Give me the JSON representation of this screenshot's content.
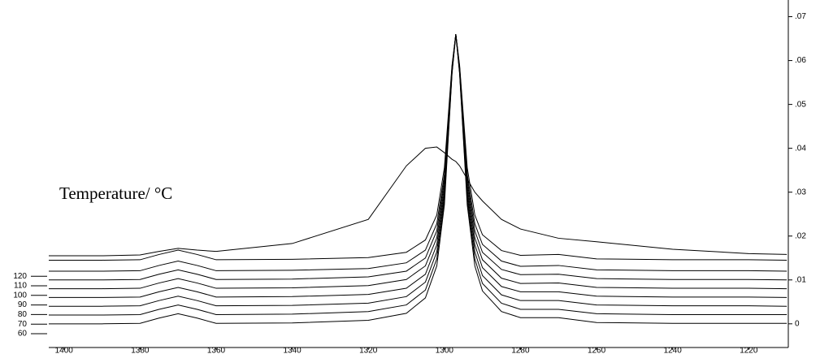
{
  "chart_data": {
    "type": "line",
    "annotation": "Temperature/ °C",
    "x": [
      1404,
      1390,
      1380,
      1375,
      1370,
      1365,
      1360,
      1340,
      1320,
      1310,
      1305,
      1302,
      1300,
      1298,
      1297,
      1296,
      1294,
      1292,
      1290,
      1285,
      1280,
      1270,
      1260,
      1240,
      1220,
      1210
    ],
    "xlim": [
      1404,
      1209.6
    ],
    "xticks": [
      1400,
      1380,
      1360,
      1340,
      1320,
      1300,
      1280,
      1260,
      1240,
      1220
    ],
    "ylim": [
      -0.0054,
      0.0738
    ],
    "yticks": [
      0,
      {
        "value": 0.01,
        "label": ".01"
      },
      {
        "value": 0.02,
        "label": ".02"
      },
      {
        "value": 0.03,
        "label": ".03"
      },
      {
        "value": 0.04,
        "label": ".04"
      },
      {
        "value": 0.05,
        "label": ".05"
      },
      {
        "value": 0.06,
        "label": ".06"
      },
      {
        "value": 0.07,
        "label": ".07"
      }
    ],
    "y2lim": [
      45.6,
      408.3
    ],
    "y2ticks": [
      60,
      70,
      80,
      90,
      100,
      110,
      120
    ],
    "series": [
      {
        "color": "#000000",
        "values": [
          0.0,
          0.0,
          0.0001,
          0.0013,
          0.0023,
          0.0013,
          0.0001,
          0.0002,
          0.0008,
          0.0024,
          0.0059,
          0.0132,
          0.0271,
          0.0569,
          0.066,
          0.0569,
          0.0271,
          0.0132,
          0.0075,
          0.0028,
          0.0014,
          0.0014,
          0.0003,
          0.0001,
          0.0001,
          0.0001
        ]
      },
      {
        "color": "#000000",
        "values": [
          0.002,
          0.002,
          0.0021,
          0.0033,
          0.0043,
          0.0033,
          0.0021,
          0.0022,
          0.0028,
          0.0043,
          0.0077,
          0.0148,
          0.0282,
          0.0572,
          0.066,
          0.0572,
          0.0282,
          0.0148,
          0.0092,
          0.0047,
          0.0033,
          0.0033,
          0.0023,
          0.0021,
          0.0021,
          0.0021
        ]
      },
      {
        "color": "#000000",
        "values": [
          0.004,
          0.004,
          0.0041,
          0.0053,
          0.0063,
          0.0053,
          0.0041,
          0.0042,
          0.0047,
          0.0062,
          0.0095,
          0.0164,
          0.0294,
          0.0574,
          0.066,
          0.0574,
          0.0294,
          0.0164,
          0.011,
          0.0066,
          0.0053,
          0.0053,
          0.0043,
          0.0041,
          0.0041,
          0.004
        ]
      },
      {
        "color": "#000000",
        "values": [
          0.006,
          0.006,
          0.0061,
          0.0073,
          0.0083,
          0.0073,
          0.0061,
          0.0062,
          0.0067,
          0.0081,
          0.0113,
          0.018,
          0.0306,
          0.0577,
          0.066,
          0.0577,
          0.0306,
          0.018,
          0.0128,
          0.0085,
          0.0073,
          0.0073,
          0.0063,
          0.0061,
          0.0061,
          0.006
        ]
      },
      {
        "color": "#000000",
        "values": [
          0.008,
          0.008,
          0.0081,
          0.0093,
          0.0103,
          0.0093,
          0.0081,
          0.0082,
          0.0087,
          0.0101,
          0.0132,
          0.0196,
          0.0318,
          0.058,
          0.066,
          0.058,
          0.0318,
          0.0196,
          0.0146,
          0.0104,
          0.0092,
          0.0093,
          0.0083,
          0.0081,
          0.0081,
          0.008
        ]
      },
      {
        "color": "#000000",
        "values": [
          0.01,
          0.01,
          0.0101,
          0.0113,
          0.0123,
          0.0113,
          0.0101,
          0.0102,
          0.0107,
          0.012,
          0.015,
          0.0212,
          0.033,
          0.0583,
          0.066,
          0.0583,
          0.033,
          0.0212,
          0.0163,
          0.0124,
          0.0112,
          0.0113,
          0.0103,
          0.0101,
          0.0101,
          0.01
        ]
      },
      {
        "color": "#000000",
        "values": [
          0.012,
          0.012,
          0.0121,
          0.0133,
          0.0143,
          0.0133,
          0.0121,
          0.0122,
          0.0126,
          0.0139,
          0.0168,
          0.0228,
          0.0341,
          0.0585,
          0.066,
          0.0585,
          0.0341,
          0.0228,
          0.0181,
          0.0143,
          0.0131,
          0.0133,
          0.0123,
          0.0121,
          0.0121,
          0.012
        ]
      },
      {
        "color": "#000000",
        "values": [
          0.0145,
          0.0145,
          0.0146,
          0.0158,
          0.0168,
          0.0158,
          0.0146,
          0.0147,
          0.0151,
          0.0163,
          0.0191,
          0.0248,
          0.0356,
          0.0589,
          0.066,
          0.0589,
          0.0356,
          0.0248,
          0.0203,
          0.0167,
          0.0156,
          0.0158,
          0.0148,
          0.0146,
          0.0146,
          0.0145
        ]
      },
      {
        "color": "#000000",
        "values": [
          0.0155,
          0.0155,
          0.0157,
          0.0165,
          0.0172,
          0.0168,
          0.0165,
          0.0183,
          0.0238,
          0.036,
          0.04,
          0.0403,
          0.039,
          0.0375,
          0.037,
          0.036,
          0.033,
          0.03,
          0.028,
          0.0238,
          0.0216,
          0.0195,
          0.0187,
          0.017,
          0.016,
          0.0158
        ]
      }
    ]
  }
}
